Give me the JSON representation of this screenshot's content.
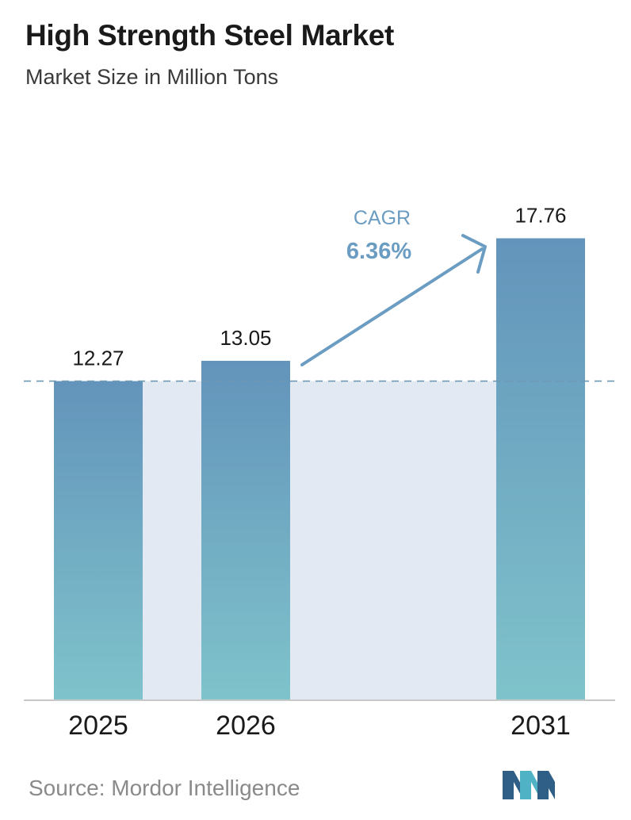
{
  "title": "High Strength Steel Market",
  "subtitle": "Market Size in Million Tons",
  "source": "Source:  Mordor Intelligence",
  "colors": {
    "bar_top": "#6394bb",
    "bar_bottom": "#7fc3cb",
    "band": "#e2e9f2",
    "arrow": "#6b9cc2",
    "baseline_dash": "#6e98b4",
    "axis": "#c8c8c8",
    "logo_dark": "#2f5f86",
    "logo_light": "#4fb3c5"
  },
  "chart_data": {
    "type": "bar",
    "categories": [
      "2025",
      "2026",
      "2031"
    ],
    "values": [
      12.27,
      13.05,
      17.76
    ],
    "value_labels": [
      "12.27",
      "13.05",
      "17.76"
    ],
    "ylim": [
      0,
      20
    ],
    "annotation": {
      "label": "CAGR",
      "value": "6.36%"
    },
    "baseline_dashed": true,
    "grid": false
  }
}
